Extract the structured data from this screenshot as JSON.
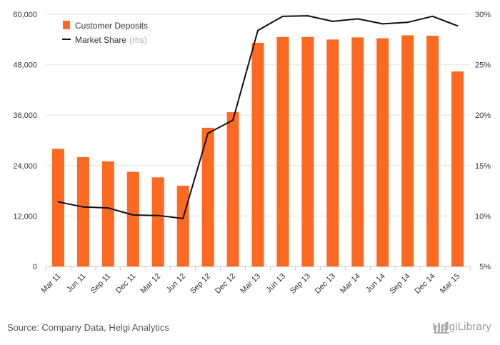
{
  "chart_data": {
    "type": "bar",
    "categories": [
      "Mar 11",
      "Jun 11",
      "Sep 11",
      "Dec 11",
      "Mar 12",
      "Jun 12",
      "Sep 12",
      "Dec 12",
      "Mar 13",
      "Jun 13",
      "Sep 13",
      "Dec 13",
      "Mar 14",
      "Jun 14",
      "Sep 14",
      "Dec 14",
      "Mar 15"
    ],
    "series": [
      {
        "name": "Customer Deposits",
        "kind": "bar",
        "axis": "left",
        "color": "#ff6a22",
        "values": [
          28000,
          26000,
          25000,
          22500,
          21200,
          19200,
          33000,
          36700,
          53200,
          54600,
          54600,
          54000,
          54500,
          54300,
          55000,
          54900,
          46400
        ]
      },
      {
        "name": "Market Share",
        "name_suffix": "(rhs)",
        "kind": "line",
        "axis": "right",
        "color": "#111111",
        "values": [
          11.4,
          10.9,
          10.8,
          10.1,
          10.05,
          9.75,
          18.2,
          19.5,
          28.4,
          29.8,
          29.85,
          29.3,
          29.55,
          29.05,
          29.2,
          29.8,
          28.85
        ]
      }
    ],
    "ylim_left": [
      0,
      60000
    ],
    "yticks_left": [
      "0",
      "12,000",
      "24,000",
      "36,000",
      "48,000",
      "60,000"
    ],
    "yticks_left_values": [
      0,
      12000,
      24000,
      36000,
      48000,
      60000
    ],
    "ylim_right": [
      5,
      30
    ],
    "yticks_right": [
      "5%",
      "10%",
      "15%",
      "20%",
      "25%",
      "30%"
    ],
    "yticks_right_values": [
      5,
      10,
      15,
      20,
      25,
      30
    ],
    "grid": true,
    "legend_position": "top-left",
    "source": "Source: Company Data, Helgi Analytics",
    "brand": "HelgiLibrary"
  }
}
